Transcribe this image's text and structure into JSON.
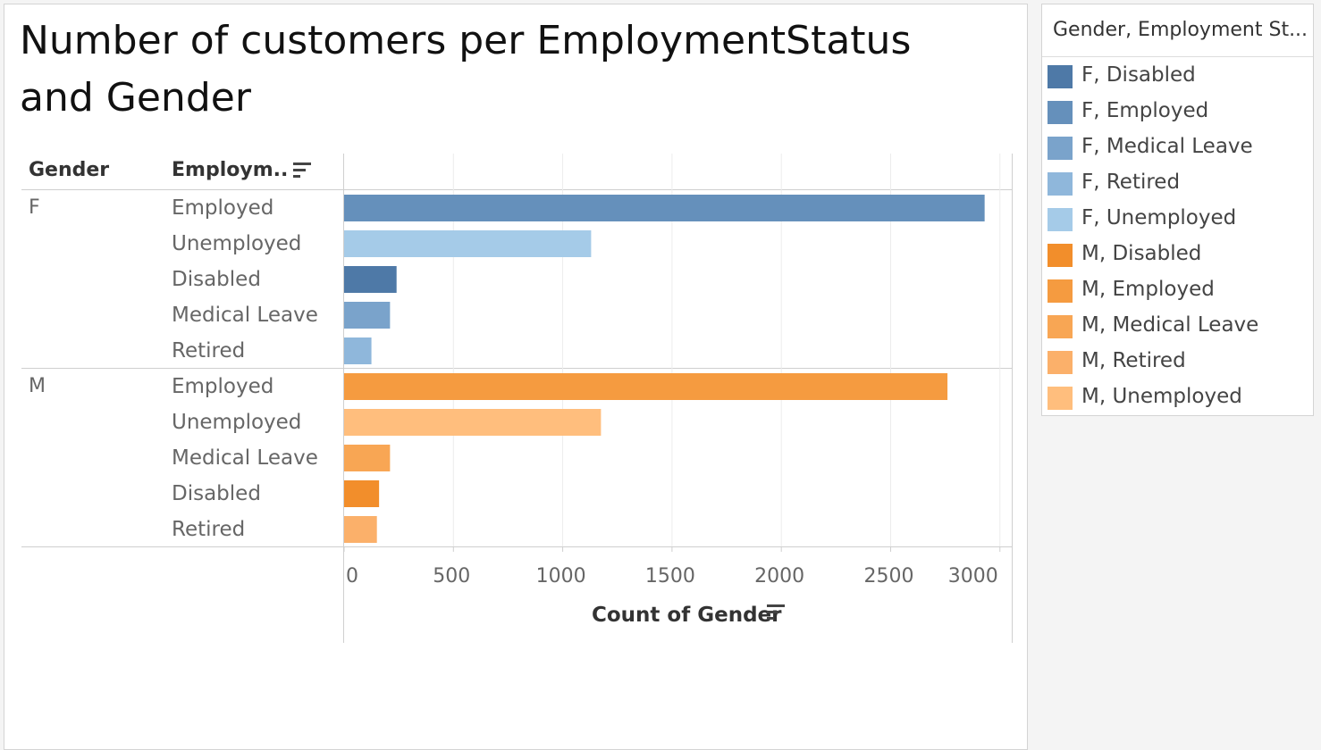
{
  "title": "Number of customers per EmploymentStatus and Gender",
  "headers": {
    "gender": "Gender",
    "employment": "Employm.."
  },
  "legend": {
    "title": "Gender, Employment St...",
    "items": [
      {
        "label": "F, Disabled",
        "color": "#4e79a7"
      },
      {
        "label": "F, Employed",
        "color": "#6590bb"
      },
      {
        "label": "F, Medical Leave",
        "color": "#7aa3cb"
      },
      {
        "label": "F, Retired",
        "color": "#8fb7db"
      },
      {
        "label": "F, Unemployed",
        "color": "#a5cbe8"
      },
      {
        "label": "M, Disabled",
        "color": "#f28e2b"
      },
      {
        "label": "M, Employed",
        "color": "#f59b40"
      },
      {
        "label": "M, Medical Leave",
        "color": "#f8a654"
      },
      {
        "label": "M, Retired",
        "color": "#fbb06a"
      },
      {
        "label": "M, Unemployed",
        "color": "#ffbe7d"
      }
    ]
  },
  "chart_data": {
    "type": "bar",
    "orientation": "horizontal",
    "title": "Number of customers per EmploymentStatus and Gender",
    "xlabel": "Count of Gender",
    "xlim": [
      0,
      3050
    ],
    "xticks": [
      0,
      500,
      1000,
      1500,
      2000,
      2500,
      3000
    ],
    "grid": true,
    "legend_position": "right",
    "groups": [
      {
        "gender": "F",
        "rows": [
          {
            "status": "Employed",
            "value": 2930,
            "color": "#6590bb"
          },
          {
            "status": "Unemployed",
            "value": 1130,
            "color": "#a5cbe8"
          },
          {
            "status": "Disabled",
            "value": 240,
            "color": "#4e79a7"
          },
          {
            "status": "Medical Leave",
            "value": 210,
            "color": "#7aa3cb"
          },
          {
            "status": "Retired",
            "value": 125,
            "color": "#8fb7db"
          }
        ]
      },
      {
        "gender": "M",
        "rows": [
          {
            "status": "Employed",
            "value": 2760,
            "color": "#f59b40"
          },
          {
            "status": "Unemployed",
            "value": 1175,
            "color": "#ffbe7d"
          },
          {
            "status": "Medical Leave",
            "value": 210,
            "color": "#f8a654"
          },
          {
            "status": "Disabled",
            "value": 160,
            "color": "#f28e2b"
          },
          {
            "status": "Retired",
            "value": 150,
            "color": "#fbb06a"
          }
        ]
      }
    ]
  }
}
